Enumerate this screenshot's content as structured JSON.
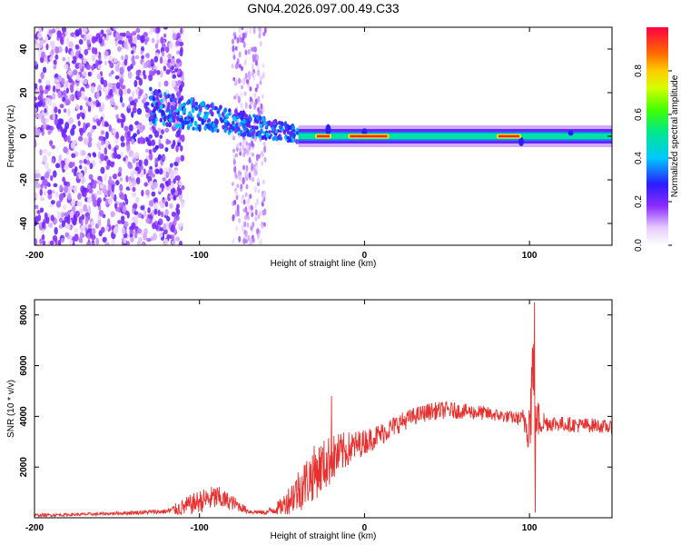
{
  "chart_data": [
    {
      "type": "heatmap",
      "title": "GN04.2026.097.00.49.C33",
      "xlabel": "Height of straight line (km)",
      "ylabel": "Frequency (Hz)",
      "xlim": [
        -200,
        150
      ],
      "ylim": [
        -50,
        50
      ],
      "xticks": [
        -200,
        -100,
        0,
        100
      ],
      "yticks": [
        -40,
        -20,
        0,
        20,
        40
      ],
      "colorbar": {
        "label": "Normalized spectral amplitude",
        "range": [
          0,
          1
        ],
        "ticks": [
          "0.0",
          "0.2",
          "0.4",
          "0.6",
          "0.8"
        ]
      },
      "features": {
        "noisy_region_x": [
          -200,
          -120
        ],
        "secondary_noise_band_x": [
          -80,
          -60
        ],
        "tone_frequency_hz": 0,
        "strong_band_segments_x": [
          [
            -30,
            -20
          ],
          [
            -10,
            15
          ],
          [
            80,
            95
          ]
        ]
      }
    },
    {
      "type": "line",
      "xlabel": "Height of straight line (km)",
      "ylabel": "SNR (10 * v/v)",
      "xlim": [
        -200,
        150
      ],
      "ylim": [
        0,
        8600
      ],
      "xticks": [
        -200,
        -100,
        0,
        100
      ],
      "yticks": [
        2000,
        4000,
        6000,
        8000
      ],
      "color": "#e8302e",
      "series": [
        {
          "name": "SNR",
          "x": [
            -200,
            -180,
            -160,
            -140,
            -120,
            -110,
            -100,
            -90,
            -80,
            -70,
            -60,
            -50,
            -40,
            -30,
            -20,
            -10,
            0,
            10,
            20,
            30,
            40,
            50,
            60,
            70,
            80,
            90,
            95,
            100,
            102,
            104,
            110,
            120,
            130,
            140,
            150
          ],
          "values": [
            100,
            120,
            150,
            200,
            250,
            400,
            650,
            800,
            600,
            250,
            200,
            450,
            1100,
            1800,
            2300,
            2700,
            3000,
            3300,
            3700,
            4000,
            4200,
            4250,
            4200,
            4150,
            4050,
            3950,
            3900,
            3700,
            5800,
            3900,
            3750,
            3700,
            3650,
            3650,
            3550
          ],
          "noise": [
            60,
            60,
            60,
            80,
            100,
            350,
            450,
            500,
            300,
            100,
            80,
            350,
            900,
            1100,
            1000,
            700,
            500,
            450,
            400,
            350,
            350,
            350,
            300,
            300,
            250,
            250,
            300,
            1200,
            2500,
            900,
            350,
            300,
            300,
            280,
            250
          ]
        }
      ],
      "spikes": [
        {
          "x": 103,
          "value": 8500
        },
        {
          "x": 103.5,
          "value": 200
        },
        {
          "x": -20,
          "value": 4800
        }
      ]
    }
  ]
}
